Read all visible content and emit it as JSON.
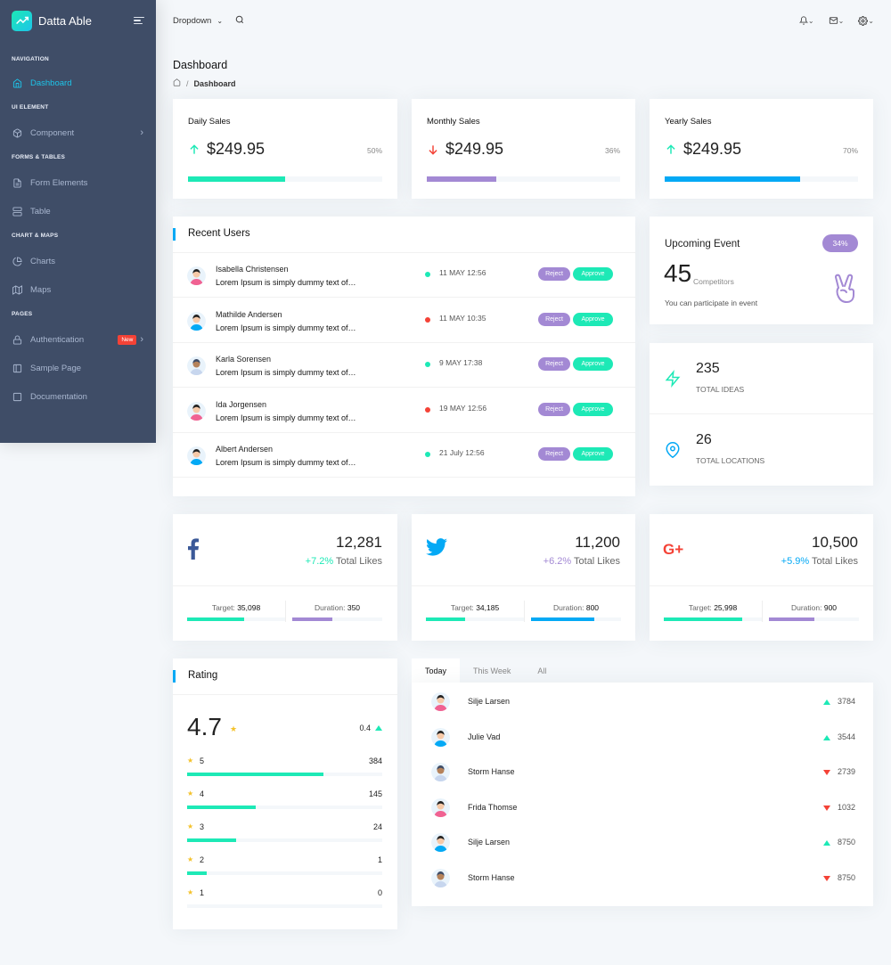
{
  "brand": {
    "name": "Datta Able"
  },
  "sidebar": {
    "sections": [
      {
        "caption": "NAVIGATION",
        "items": [
          {
            "label": "Dashboard",
            "icon": "home-icon",
            "active": true
          }
        ]
      },
      {
        "caption": "UI ELEMENT",
        "items": [
          {
            "label": "Component",
            "icon": "box-icon",
            "chevron": true
          }
        ]
      },
      {
        "caption": "FORMS & TABLES",
        "items": [
          {
            "label": "Form Elements",
            "icon": "file-icon"
          },
          {
            "label": "Table",
            "icon": "server-icon"
          }
        ]
      },
      {
        "caption": "CHART & MAPS",
        "items": [
          {
            "label": "Charts",
            "icon": "pie-chart-icon"
          },
          {
            "label": "Maps",
            "icon": "map-icon"
          }
        ]
      },
      {
        "caption": "PAGES",
        "items": [
          {
            "label": "Authentication",
            "icon": "lock-icon",
            "badge": "New",
            "chevron": true
          },
          {
            "label": "Sample Page",
            "icon": "sidebar-icon"
          },
          {
            "label": "Documentation",
            "icon": "book-icon"
          }
        ]
      }
    ]
  },
  "header": {
    "dropdown_label": "Dropdown"
  },
  "page": {
    "title": "Dashboard",
    "breadcrumb_current": "Dashboard"
  },
  "sales": [
    {
      "title": "Daily Sales",
      "value": "$249.95",
      "percent": "50%",
      "trend": "up",
      "progress": 0.5,
      "color": "#1de9b6"
    },
    {
      "title": "Monthly Sales",
      "value": "$249.95",
      "percent": "36%",
      "trend": "down",
      "progress": 0.36,
      "color": "#a389d4"
    },
    {
      "title": "Yearly Sales",
      "value": "$249.95",
      "percent": "70%",
      "trend": "up",
      "progress": 0.7,
      "color": "#04a9f5"
    }
  ],
  "recent_users": {
    "title": "Recent Users",
    "reject_label": "Reject",
    "approve_label": "Approve",
    "rows": [
      {
        "name": "Isabella Christensen",
        "message": "Lorem Ipsum is simply dummy text of…",
        "date": "11 MAY 12:56",
        "status_color": "#1de9b6",
        "avatar": "female"
      },
      {
        "name": "Mathilde Andersen",
        "message": "Lorem Ipsum is simply dummy text of…",
        "date": "11 MAY 10:35",
        "status_color": "#f44236",
        "avatar": "male"
      },
      {
        "name": "Karla Sorensen",
        "message": "Lorem Ipsum is simply dummy text of…",
        "date": "9 MAY 17:38",
        "status_color": "#1de9b6",
        "avatar": "female-dark"
      },
      {
        "name": "Ida Jorgensen",
        "message": "Lorem Ipsum is simply dummy text of…",
        "date": "19 MAY 12:56",
        "status_color": "#f44236",
        "avatar": "female"
      },
      {
        "name": "Albert Andersen",
        "message": "Lorem Ipsum is simply dummy text of…",
        "date": "21 July 12:56",
        "status_color": "#1de9b6",
        "avatar": "male"
      }
    ]
  },
  "upcoming_event": {
    "title": "Upcoming Event",
    "percent": "34%",
    "count": "45",
    "count_label": "Competitors",
    "description": "You can participate in event"
  },
  "stats": [
    {
      "value": "235",
      "label": "TOTAL IDEAS",
      "icon": "zap-icon"
    },
    {
      "value": "26",
      "label": "TOTAL LOCATIONS",
      "icon": "map-pin-icon"
    }
  ],
  "social": [
    {
      "network": "facebook",
      "value": "12,281",
      "growth": "+7.2%",
      "growth_color": "#1de9b6",
      "suffix": "Total Likes",
      "target_label": "Target:",
      "target": "35,098",
      "duration_label": "Duration:",
      "duration": "350",
      "target_progress": 0.58,
      "duration_progress": 0.45,
      "target_color": "#1de9b6",
      "duration_color": "#a389d4"
    },
    {
      "network": "twitter",
      "value": "11,200",
      "growth": "+6.2%",
      "growth_color": "#a389d4",
      "suffix": "Total Likes",
      "target_label": "Target:",
      "target": "34,185",
      "duration_label": "Duration:",
      "duration": "800",
      "target_progress": 0.4,
      "duration_progress": 0.7,
      "target_color": "#1de9b6",
      "duration_color": "#04a9f5"
    },
    {
      "network": "google-plus",
      "value": "10,500",
      "growth": "+5.9%",
      "growth_color": "#04a9f5",
      "suffix": "Total Likes",
      "target_label": "Target:",
      "target": "25,998",
      "duration_label": "Duration:",
      "duration": "900",
      "target_progress": 0.8,
      "duration_progress": 0.5,
      "target_color": "#1de9b6",
      "duration_color": "#a389d4"
    }
  ],
  "rating": {
    "title": "Rating",
    "score": "4.7",
    "delta": "0.4",
    "rows": [
      {
        "stars": "5",
        "count": "384",
        "progress": 0.7
      },
      {
        "stars": "4",
        "count": "145",
        "progress": 0.35
      },
      {
        "stars": "3",
        "count": "24",
        "progress": 0.25
      },
      {
        "stars": "2",
        "count": "1",
        "progress": 0.1
      },
      {
        "stars": "1",
        "count": "0",
        "progress": 0.0
      }
    ]
  },
  "leaderboard": {
    "tabs": [
      "Today",
      "This Week",
      "All"
    ],
    "rows": [
      {
        "name": "Silje Larsen",
        "value": "3784",
        "trend": "up",
        "avatar": "female"
      },
      {
        "name": "Julie Vad",
        "value": "3544",
        "trend": "up",
        "avatar": "male"
      },
      {
        "name": "Storm Hanse",
        "value": "2739",
        "trend": "down",
        "avatar": "female-dark"
      },
      {
        "name": "Frida Thomse",
        "value": "1032",
        "trend": "down",
        "avatar": "female"
      },
      {
        "name": "Silje Larsen",
        "value": "8750",
        "trend": "up",
        "avatar": "male"
      },
      {
        "name": "Storm Hanse",
        "value": "8750",
        "trend": "down",
        "avatar": "female-dark"
      }
    ]
  }
}
